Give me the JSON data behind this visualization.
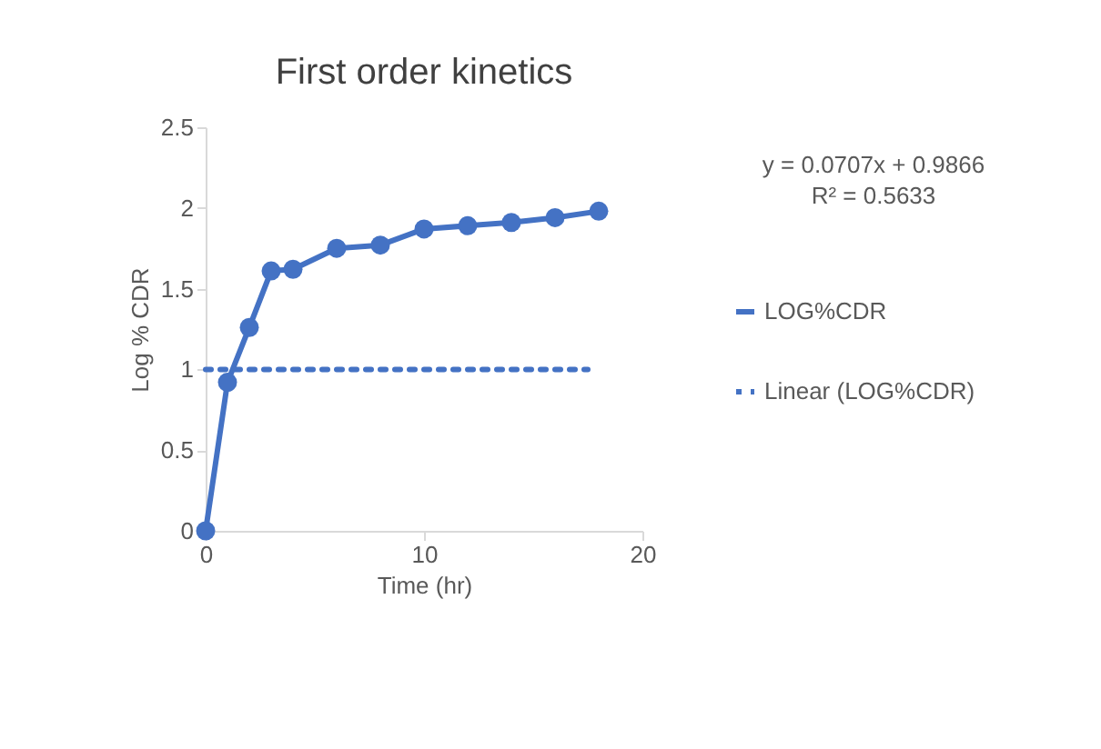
{
  "chart_data": {
    "type": "line",
    "title": "First order kinetics",
    "xlabel": "Time (hr)",
    "ylabel": "Log % CDR",
    "xlim": [
      0,
      20
    ],
    "xticks": [
      0,
      10,
      20
    ],
    "ylim": [
      0,
      2.5
    ],
    "yticks": [
      0,
      0.5,
      1,
      1.5,
      2,
      2.5
    ],
    "grid": false,
    "legend": "right",
    "annotations": [
      "y = 0.0707x + 0.9866",
      "R² = 0.5633"
    ],
    "series": [
      {
        "name": "LOG%CDR",
        "color": "#4472c4",
        "marker": "circle",
        "line_style": "solid",
        "x": [
          0,
          1,
          2,
          3,
          4,
          6,
          8,
          10,
          12,
          14,
          16,
          18
        ],
        "values": [
          0,
          0.92,
          1.26,
          1.61,
          1.62,
          1.75,
          1.77,
          1.87,
          1.89,
          1.91,
          1.94,
          1.98
        ]
      },
      {
        "name": "Linear (LOG%CDR)",
        "color": "#4472c4",
        "marker": "none",
        "line_style": "dotted",
        "x": [
          0,
          17.5
        ],
        "values": [
          1,
          1
        ]
      }
    ]
  }
}
